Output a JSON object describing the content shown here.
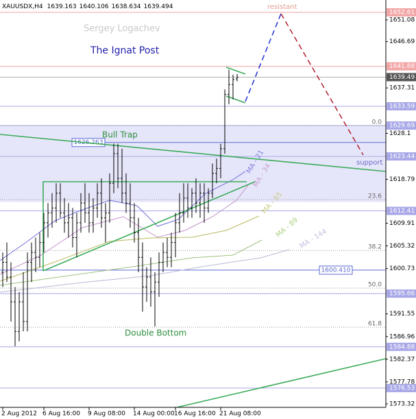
{
  "header": {
    "symbol": "XAUUSDX,H4"
  },
  "chart_data": {
    "type": "ohlc",
    "open": [
      1600,
      1602,
      1599,
      1594,
      1588,
      1594,
      1590,
      1602,
      1604,
      1603,
      1606,
      1610,
      1612,
      1613,
      1616,
      1612,
      1610,
      1611,
      1607,
      1610,
      1614,
      1612,
      1610,
      1613,
      1616,
      1611,
      1612,
      1618,
      1624,
      1619,
      1616,
      1614,
      1611,
      1608,
      1603,
      1597,
      1599,
      1596,
      1598,
      1602,
      1604,
      1603,
      1606,
      1610,
      1612,
      1615,
      1613,
      1616,
      1614,
      1616,
      1613,
      1616,
      1620,
      1621,
      1625,
      1636,
      1638,
      1639.163
    ],
    "high": [
      1604,
      1606,
      1602,
      1597,
      1596,
      1600,
      1604,
      1606,
      1607,
      1608,
      1612,
      1614,
      1616,
      1618,
      1618,
      1615,
      1614,
      1613,
      1612,
      1616,
      1618,
      1616,
      1615,
      1618,
      1619,
      1614,
      1620,
      1626,
      1626,
      1625,
      1620,
      1618,
      1614,
      1611,
      1606,
      1601,
      1603,
      1600,
      1604,
      1606,
      1607,
      1608,
      1612,
      1616,
      1618,
      1618,
      1617,
      1619,
      1618,
      1618,
      1617,
      1622,
      1623,
      1626,
      1637,
      1641,
      1640,
      1640.106
    ],
    "low": [
      1597,
      1598,
      1590,
      1585,
      1586,
      1588,
      1588,
      1598,
      1600,
      1601,
      1604,
      1607,
      1609,
      1610,
      1611,
      1608,
      1607,
      1605,
      1603,
      1608,
      1610,
      1608,
      1608,
      1611,
      1609,
      1606,
      1610,
      1616,
      1617,
      1614,
      1612,
      1609,
      1606,
      1600,
      1592,
      1594,
      1593,
      1589,
      1595,
      1600,
      1601,
      1601,
      1603,
      1608,
      1610,
      1611,
      1611,
      1612,
      1611,
      1610,
      1612,
      1615,
      1618,
      1619,
      1624,
      1634,
      1635,
      1638.634
    ],
    "close": [
      1602,
      1599,
      1594,
      1588,
      1594,
      1590,
      1602,
      1604,
      1603,
      1606,
      1610,
      1612,
      1613,
      1616,
      1612,
      1610,
      1611,
      1607,
      1610,
      1614,
      1612,
      1610,
      1613,
      1616,
      1611,
      1612,
      1618,
      1624,
      1619,
      1616,
      1614,
      1611,
      1608,
      1603,
      1597,
      1599,
      1596,
      1598,
      1602,
      1604,
      1603,
      1606,
      1610,
      1612,
      1615,
      1613,
      1616,
      1614,
      1616,
      1613,
      1616,
      1620,
      1621,
      1625,
      1636,
      1638,
      1639,
      1639.494
    ],
    "xticks": [
      {
        "value": 0,
        "label": "2 Aug 2012"
      },
      {
        "value": 10,
        "label": "6 Aug 16:00"
      },
      {
        "value": 21,
        "label": "9 Aug 08:00"
      },
      {
        "value": 32,
        "label": "14 Aug 00:00"
      },
      {
        "value": 42,
        "label": "16 Aug 16:00"
      },
      {
        "value": 53,
        "label": "21 Aug 08:00"
      }
    ],
    "ylim": [
      1572.63,
      1655.11
    ],
    "yticks": [
      1651.08,
      1646.69,
      1637.31,
      1628.1,
      1618.79,
      1609.91,
      1605.32,
      1600.73,
      1591.55,
      1586.96,
      1582.37,
      1577.78,
      1573.32
    ],
    "zone": [
      1614.2,
      1629.69
    ],
    "levels": [
      {
        "value": 1652.61,
        "color": "#f2a6a6"
      },
      {
        "value": 1641.68,
        "color": "#f2a6a6"
      },
      {
        "value": 1633.59,
        "color": "#a8a8e8"
      },
      {
        "value": 1629.69,
        "color": "#a8a8e8"
      },
      {
        "value": 1623.44,
        "color": "#a8a8e8"
      },
      {
        "value": 1612.41,
        "color": "#a8a8e8"
      },
      {
        "value": 1595.66,
        "color": "#a8a8e8"
      },
      {
        "value": 1584.88,
        "color": "#a8a8e8"
      },
      {
        "value": 1576.53,
        "color": "#a8a8e8"
      }
    ],
    "fib_levels": [
      {
        "value": 1629.69,
        "label": "0.0"
      },
      {
        "value": 1614.7,
        "label": "23.6"
      },
      {
        "value": 1604.4,
        "label": "38.2"
      },
      {
        "value": 1596.77,
        "label": "50.0"
      },
      {
        "value": 1588.86,
        "label": "61.8"
      }
    ],
    "price_labels": [
      1626.263,
      {
        "value": 1600.41,
        "label": "1600.410"
      }
    ],
    "current_price": {
      "value": 1639.494,
      "label": "1639.49"
    },
    "annotations": {
      "author": "Sergey Logachev",
      "title": "The Ignat Post",
      "bull_trap": "Bull Trap",
      "double_bottom": "Double Bottom",
      "resistant": "resistant",
      "support": "support"
    },
    "ma_labels": [
      "MA - 21",
      "MA - 34",
      "MA - 55",
      "MA - 89",
      "MA - 144"
    ]
  }
}
